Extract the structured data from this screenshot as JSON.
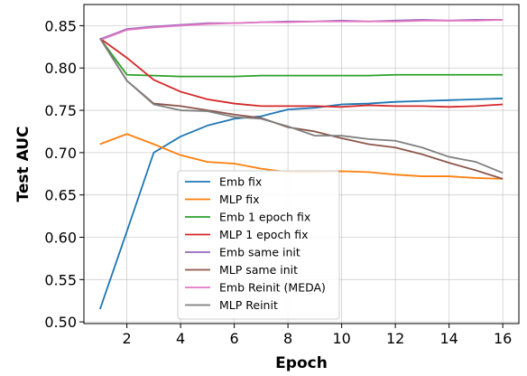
{
  "chart_data": {
    "type": "line",
    "xlabel": "Epoch",
    "ylabel": "Test AUC",
    "xlim": [
      0.4,
      16.6
    ],
    "ylim": [
      0.498,
      0.875
    ],
    "xticks": [
      2,
      4,
      6,
      8,
      10,
      12,
      14,
      16
    ],
    "yticks": [
      0.5,
      0.55,
      0.6,
      0.65,
      0.7,
      0.75,
      0.8,
      0.85
    ],
    "x": [
      1,
      2,
      3,
      4,
      5,
      6,
      7,
      8,
      9,
      10,
      11,
      12,
      13,
      14,
      15,
      16
    ],
    "grid": true,
    "legend_position": "lower-center",
    "series": [
      {
        "name": "Emb fix",
        "color": "#1f77b4",
        "values": [
          0.515,
          0.607,
          0.7,
          0.719,
          0.732,
          0.74,
          0.743,
          0.751,
          0.753,
          0.757,
          0.758,
          0.76,
          0.761,
          0.762,
          0.763,
          0.764
        ]
      },
      {
        "name": "MLP fix",
        "color": "#ff7f0e",
        "values": [
          0.71,
          0.722,
          0.71,
          0.697,
          0.689,
          0.687,
          0.681,
          0.677,
          0.677,
          0.678,
          0.677,
          0.674,
          0.672,
          0.672,
          0.67,
          0.669
        ]
      },
      {
        "name": "Emb 1 epoch fix",
        "color": "#2ca02c",
        "values": [
          0.835,
          0.792,
          0.791,
          0.79,
          0.79,
          0.79,
          0.791,
          0.791,
          0.791,
          0.791,
          0.791,
          0.792,
          0.792,
          0.792,
          0.792,
          0.792
        ]
      },
      {
        "name": "MLP 1 epoch fix",
        "color": "#d62728",
        "values": [
          0.835,
          0.812,
          0.786,
          0.772,
          0.763,
          0.758,
          0.755,
          0.755,
          0.755,
          0.754,
          0.756,
          0.755,
          0.755,
          0.754,
          0.755,
          0.757
        ]
      },
      {
        "name": "Emb same init",
        "color": "#9467bd",
        "values": [
          0.834,
          0.846,
          0.849,
          0.851,
          0.853,
          0.853,
          0.854,
          0.855,
          0.855,
          0.856,
          0.855,
          0.856,
          0.857,
          0.856,
          0.857,
          0.857
        ]
      },
      {
        "name": "MLP same init",
        "color": "#8c564b",
        "values": [
          0.835,
          0.785,
          0.758,
          0.755,
          0.75,
          0.745,
          0.741,
          0.73,
          0.725,
          0.717,
          0.71,
          0.706,
          0.698,
          0.688,
          0.679,
          0.669
        ]
      },
      {
        "name": "Emb Reinit (MEDA)",
        "color": "#e377c2",
        "values": [
          0.833,
          0.845,
          0.848,
          0.85,
          0.852,
          0.853,
          0.854,
          0.854,
          0.855,
          0.855,
          0.855,
          0.855,
          0.856,
          0.856,
          0.856,
          0.857
        ]
      },
      {
        "name": "MLP Reinit",
        "color": "#7f7f7f",
        "values": [
          0.835,
          0.785,
          0.757,
          0.75,
          0.749,
          0.742,
          0.74,
          0.731,
          0.72,
          0.72,
          0.716,
          0.714,
          0.706,
          0.695,
          0.689,
          0.676
        ]
      }
    ]
  }
}
